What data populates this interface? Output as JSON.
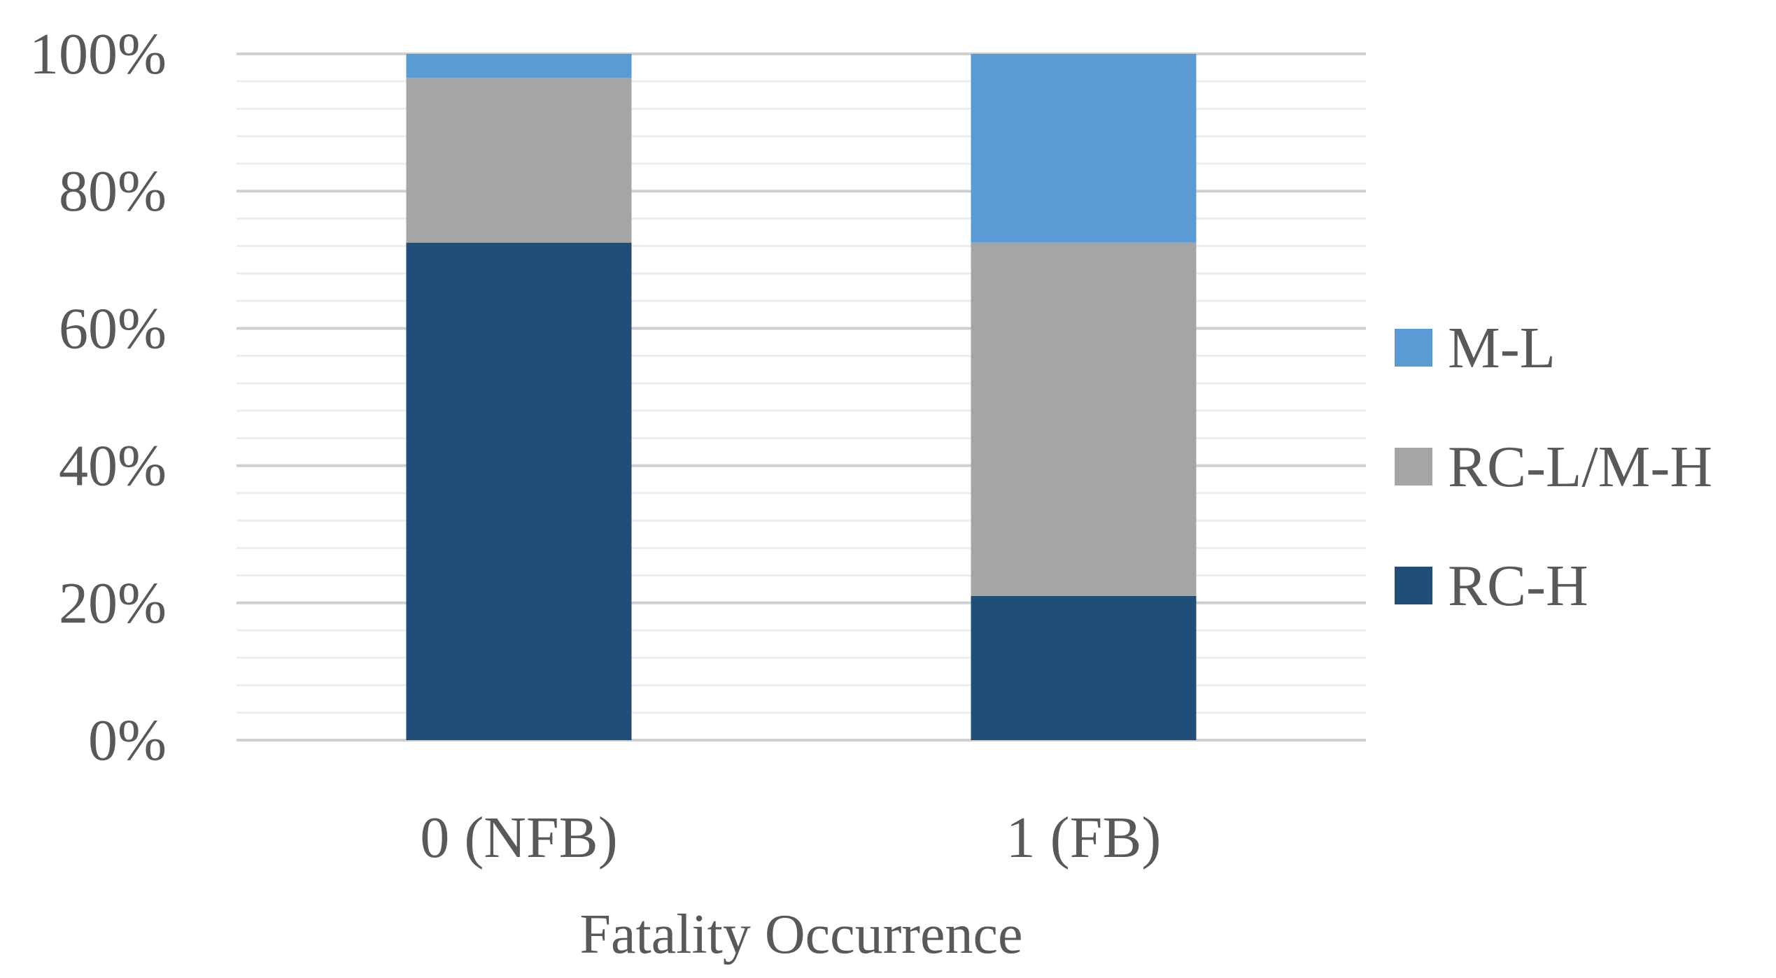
{
  "chart_data": {
    "type": "bar",
    "stacked": true,
    "percent": true,
    "categories": [
      "0 (NFB)",
      "1 (FB)"
    ],
    "series": [
      {
        "name": "RC-H",
        "color": "#1f4e79",
        "values": [
          72.5,
          21
        ]
      },
      {
        "name": "RC-L/M-H",
        "color": "#a5a5a5",
        "values": [
          24,
          51.5
        ]
      },
      {
        "name": "M-L",
        "color": "#5b9bd5",
        "values": [
          3.5,
          27.5
        ]
      }
    ],
    "title": "",
    "xlabel": "Fatality Occurrence",
    "ylabel": "",
    "ylim": [
      0,
      100
    ],
    "yticks": [
      "0%",
      "20%",
      "40%",
      "60%",
      "80%",
      "100%"
    ],
    "grid": true,
    "legend": "right"
  }
}
